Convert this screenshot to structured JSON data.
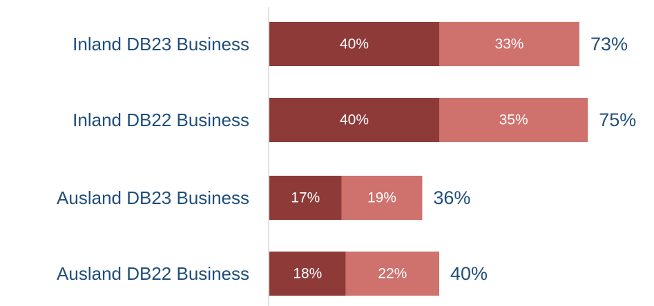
{
  "chart_data": {
    "type": "bar",
    "orientation": "horizontal",
    "stacked": true,
    "categories": [
      "Inland DB23 Business",
      "Inland DB22 Business",
      "Ausland DB23 Business",
      "Ausland DB22 Business"
    ],
    "series": [
      {
        "values": [
          40,
          40,
          17,
          18
        ],
        "labels": [
          "40%",
          "40%",
          "17%",
          "18%"
        ],
        "color": "#8e3a38"
      },
      {
        "values": [
          33,
          35,
          19,
          22
        ],
        "labels": [
          "33%",
          "35%",
          "19%",
          "22%"
        ],
        "color": "#cf716d"
      }
    ],
    "totals": [
      73,
      75,
      36,
      40
    ],
    "total_labels": [
      "73%",
      "75%",
      "36%",
      "40%"
    ],
    "xlim": [
      0,
      100
    ],
    "grid": false,
    "legend": false,
    "title": "",
    "xlabel": "",
    "ylabel": "",
    "colors": {
      "category_text": "#1f4e79",
      "total_text": "#1f4e79",
      "segment_text": "#ffffff",
      "axis_line": "#d9d9d9"
    }
  }
}
